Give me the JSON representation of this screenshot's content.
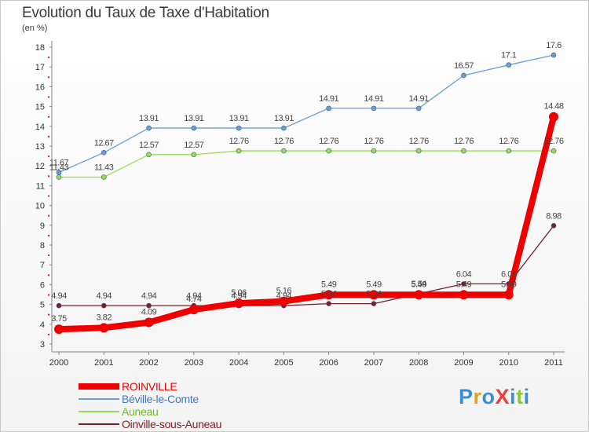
{
  "title": "Evolution du Taux de Taxe d'Habitation",
  "subtitle": "(en %)",
  "logo": "ProXiti",
  "chart_data": {
    "type": "line",
    "title": "Evolution du Taux de Taxe d'Habitation",
    "ylabel": "(en %)",
    "xlabel": "",
    "x": [
      "2000",
      "2001",
      "2002",
      "2003",
      "2004",
      "2005",
      "2006",
      "2007",
      "2008",
      "2009",
      "2010",
      "2011"
    ],
    "ylim": [
      3,
      18
    ],
    "yticks": [
      3,
      4,
      5,
      6,
      7,
      8,
      9,
      10,
      11,
      12,
      13,
      14,
      15,
      16,
      17,
      18
    ],
    "grid": false,
    "legend_position": "bottom-left",
    "series": [
      {
        "name": "ROINVILLE",
        "color": "#ee0000",
        "values": [
          3.75,
          3.82,
          4.09,
          4.74,
          5.06,
          5.16,
          5.49,
          5.49,
          5.49,
          5.49,
          5.49,
          14.48
        ],
        "labels": [
          "3.75",
          "3.82",
          "4.09",
          "4.74",
          "5.06",
          "5.16",
          "5.49",
          "5.49",
          "5.49",
          "5.49",
          "5.49",
          "14.48"
        ]
      },
      {
        "name": "Béville-le-Comte",
        "color": "#6a9fd4",
        "values": [
          11.67,
          12.67,
          13.91,
          13.91,
          13.91,
          13.91,
          14.91,
          14.91,
          14.91,
          16.57,
          17.1,
          17.6
        ],
        "labels": [
          "11.67",
          "12.67",
          "13.91",
          "13.91",
          "13.91",
          "13.91",
          "14.91",
          "14.91",
          "14.91",
          "16.57",
          "17.1",
          "17.6"
        ]
      },
      {
        "name": "Auneau",
        "color": "#99dd55",
        "values": [
          11.43,
          11.43,
          12.57,
          12.57,
          12.76,
          12.76,
          12.76,
          12.76,
          12.76,
          12.76,
          12.76,
          12.76
        ],
        "labels": [
          "11.43",
          "11.43",
          "12.57",
          "12.57",
          "12.76",
          "12.76",
          "12.76",
          "12.76",
          "12.76",
          "12.76",
          "12.76",
          "12.76"
        ]
      },
      {
        "name": "Oinville-sous-Auneau",
        "color": "#7a1f2a",
        "values": [
          4.94,
          4.94,
          4.94,
          4.94,
          4.94,
          4.94,
          5.04,
          5.04,
          5.54,
          6.04,
          6.04,
          8.98
        ],
        "labels": [
          "4.94",
          "4.94",
          "4.94",
          "4.94",
          "4.94",
          "4.94",
          "5.04",
          "5.04",
          "5.54",
          "6.04",
          "6.04",
          "8.98"
        ]
      }
    ]
  }
}
